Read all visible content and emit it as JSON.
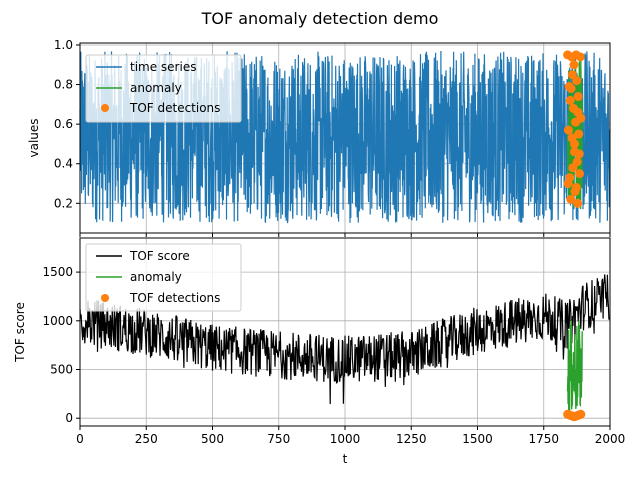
{
  "figure": {
    "title": "TOF anomaly detection demo"
  },
  "colors": {
    "series": "#1f77b4",
    "anomaly": "#2ca02c",
    "detections": "#ff7f0e",
    "score": "#000000",
    "grid": "#b0b0b0"
  },
  "chart_data": [
    {
      "type": "line",
      "title": "",
      "xlabel": "",
      "ylabel": "values",
      "xlim": [
        0,
        2000
      ],
      "ylim": [
        0.05,
        1.01
      ],
      "xticks": [
        0,
        250,
        500,
        750,
        1000,
        1250,
        1500,
        1750,
        2000
      ],
      "yticks": [
        0.2,
        0.4,
        0.6,
        0.8,
        1.0
      ],
      "ytick_labels": [
        "0.2",
        "0.4",
        "0.6",
        "0.8",
        "1.0"
      ],
      "grid": true,
      "legend": {
        "placement": "upper-left",
        "entries": [
          "time series",
          "anomaly",
          "TOF detections"
        ]
      },
      "series": [
        {
          "name": "time series",
          "kind": "line",
          "x_range": [
            0,
            2000
          ],
          "n_points": 2000,
          "min": 0.1,
          "max": 0.97,
          "description_values": "rapidly oscillating noise between ~0.1 and ~0.97"
        },
        {
          "name": "anomaly",
          "kind": "line",
          "x_range": [
            1840,
            1895
          ],
          "min": 0.15,
          "max": 0.95
        },
        {
          "name": "TOF detections",
          "kind": "scatter",
          "x": [
            1840,
            1843,
            1846,
            1848,
            1850,
            1852,
            1855,
            1857,
            1860,
            1862,
            1864,
            1866,
            1868,
            1870,
            1872,
            1874,
            1876,
            1878,
            1880,
            1882,
            1885,
            1888,
            1890,
            1842,
            1858,
            1866,
            1873,
            1879,
            1884,
            1853
          ],
          "y": [
            0.95,
            0.57,
            0.79,
            0.33,
            0.72,
            0.22,
            0.94,
            0.53,
            0.38,
            0.68,
            0.9,
            0.46,
            0.26,
            0.61,
            0.95,
            0.82,
            0.41,
            0.2,
            0.74,
            0.55,
            0.35,
            0.94,
            0.63,
            0.3,
            0.85,
            0.5,
            0.28,
            0.66,
            0.45,
            0.78
          ]
        }
      ]
    },
    {
      "type": "line",
      "title": "",
      "xlabel": "t",
      "ylabel": "TOF score",
      "xlim": [
        0,
        2000
      ],
      "ylim": [
        -80,
        1850
      ],
      "xticks": [
        0,
        250,
        500,
        750,
        1000,
        1250,
        1500,
        1750,
        2000
      ],
      "xtick_labels": [
        "0",
        "250",
        "500",
        "750",
        "1000",
        "1250",
        "1500",
        "1750",
        "2000"
      ],
      "yticks": [
        0,
        500,
        1000,
        1500
      ],
      "ytick_labels": [
        "0",
        "500",
        "1000",
        "1500"
      ],
      "grid": true,
      "legend": {
        "placement": "upper-left",
        "entries": [
          "TOF score",
          "anomaly",
          "TOF detections"
        ]
      },
      "series": [
        {
          "name": "TOF score",
          "kind": "line",
          "x_range": [
            0,
            2000
          ],
          "n_points": 2000,
          "trend_x": [
            0,
            250,
            500,
            750,
            1000,
            1250,
            1500,
            1750,
            1840,
            1900,
            2000
          ],
          "trend_y": [
            1000,
            880,
            720,
            650,
            600,
            650,
            900,
            1050,
            950,
            1150,
            1250
          ]
        },
        {
          "name": "anomaly",
          "kind": "line",
          "x_range": [
            1840,
            1895
          ],
          "min": 20,
          "max": 1000
        },
        {
          "name": "TOF detections",
          "kind": "scatter",
          "x": [
            1840,
            1845,
            1850,
            1855,
            1860,
            1865,
            1870,
            1875,
            1880,
            1885,
            1890
          ],
          "y": [
            40,
            35,
            30,
            25,
            20,
            15,
            20,
            25,
            30,
            35,
            40
          ]
        }
      ]
    }
  ]
}
